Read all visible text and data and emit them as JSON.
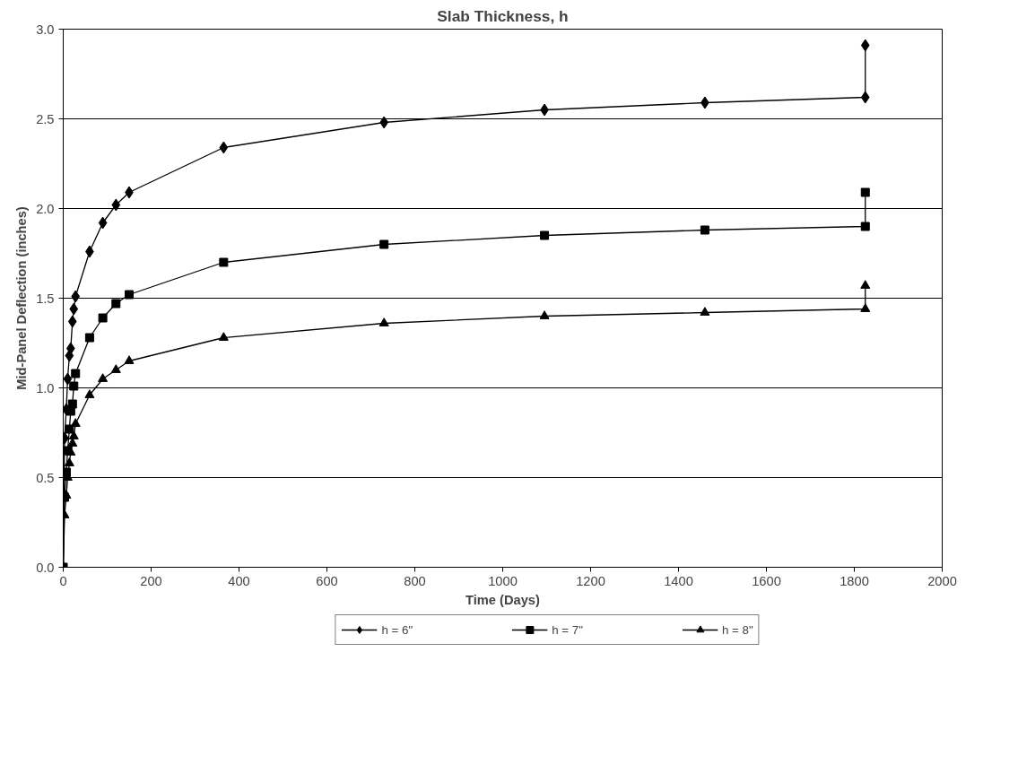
{
  "chart_data": {
    "type": "line",
    "title": "Slab Thickness, h",
    "xlabel": "Time (Days)",
    "ylabel": "Mid-Panel Deflection (inches)",
    "x": [
      0,
      3,
      7,
      10,
      14,
      17,
      21,
      24,
      28,
      60,
      90,
      120,
      150,
      365,
      730,
      1095,
      1460,
      1825,
      1825
    ],
    "series": [
      {
        "name": "h = 6\"",
        "color": "#000000",
        "marker": "diamond",
        "values": [
          0,
          0.72,
          0.88,
          1.05,
          1.18,
          1.22,
          1.37,
          1.44,
          1.51,
          1.76,
          1.92,
          2.02,
          2.09,
          2.34,
          2.48,
          2.55,
          2.59,
          2.62,
          2.91
        ]
      },
      {
        "name": "h = 7\"",
        "color": "#000000",
        "marker": "square",
        "values": [
          0,
          0.39,
          0.53,
          0.65,
          0.77,
          0.87,
          0.91,
          1.01,
          1.08,
          1.28,
          1.39,
          1.47,
          1.52,
          1.7,
          1.8,
          1.85,
          1.88,
          1.9,
          2.09
        ]
      },
      {
        "name": "h = 8\"",
        "color": "#000000",
        "marker": "triangle",
        "values": [
          0,
          0.29,
          0.4,
          0.5,
          0.58,
          0.64,
          0.69,
          0.73,
          0.8,
          0.96,
          1.05,
          1.1,
          1.15,
          1.28,
          1.36,
          1.4,
          1.42,
          1.44,
          1.57
        ]
      }
    ],
    "xlim": [
      0,
      2000
    ],
    "xticks": [
      0,
      200,
      400,
      600,
      800,
      1000,
      1200,
      1400,
      1600,
      1800,
      2000
    ],
    "ylim": [
      0,
      3
    ],
    "yticks": [
      {
        "value": 0,
        "label": "0.0"
      },
      {
        "value": 0.5,
        "label": "0.5"
      },
      {
        "value": 1,
        "label": "1.0"
      },
      {
        "value": 1.5,
        "label": "1.5"
      },
      {
        "value": 2,
        "label": "2.0"
      },
      {
        "value": 2.5,
        "label": "2.5"
      },
      {
        "value": 3,
        "label": "3.0"
      }
    ],
    "grid": "y",
    "legend": "bottom",
    "line_style": "solid"
  }
}
